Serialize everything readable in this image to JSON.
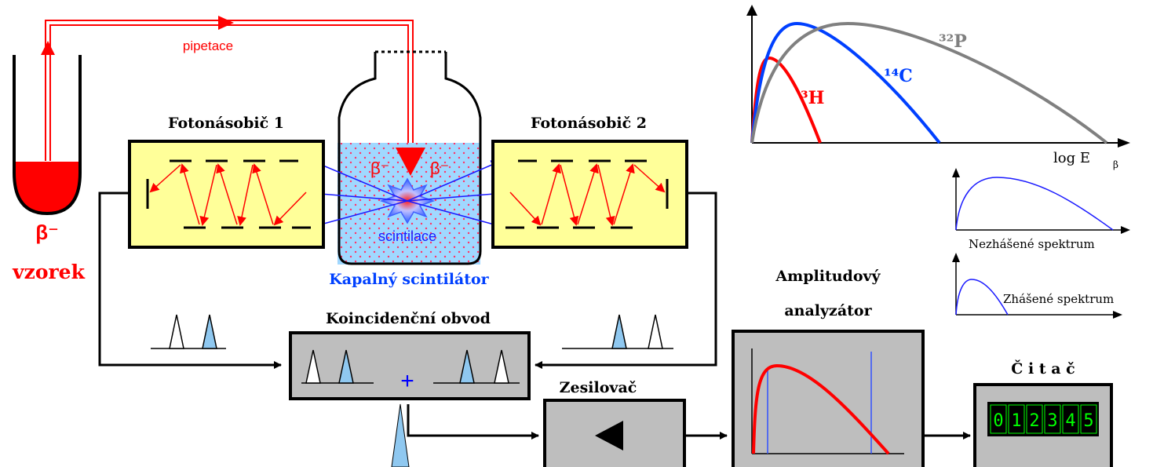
{
  "colors": {
    "red": "#ff0000",
    "blue": "#0000ff",
    "liquid": "#a0d8ff",
    "pmt_fill": "#ffff99",
    "box_fill": "#bebebe",
    "dark_blue": "#0040ff",
    "gray_curve": "#808080",
    "display_bg": "#000000",
    "display_digits": "#00ff00"
  },
  "sample": {
    "label": "vzorek",
    "symbol": "β⁻",
    "transfer_label": "pipetace"
  },
  "vial": {
    "symbol_left": "β⁻",
    "symbol_right": "β⁻",
    "flash_label": "scintilace",
    "caption": "Kapalný scintilátor"
  },
  "pmt1": {
    "title": "Fotonásobič 1"
  },
  "pmt2": {
    "title": "Fotonásobič 2"
  },
  "coincidence": {
    "title": "Koincidenční obvod",
    "plus": "+"
  },
  "amplifier": {
    "title": "Zesilovač"
  },
  "analyzer": {
    "title_line1": "Amplitudový",
    "title_line2": "analyzátor"
  },
  "counter": {
    "title": "Č i t a č",
    "digits": [
      "0",
      "1",
      "2",
      "3",
      "4",
      "5"
    ]
  },
  "spectrum_main": {
    "x_label": "log  E",
    "x_label_sub": "β",
    "curves": [
      {
        "isotope": "³H",
        "color": "#ff0000"
      },
      {
        "isotope": "¹⁴C",
        "color": "#0040ff"
      },
      {
        "isotope": "³²P",
        "color": "#808080"
      }
    ]
  },
  "spectrum_unquenched": {
    "label": "Nezhášené spektrum"
  },
  "spectrum_quenched": {
    "label": "Zhášené spektrum"
  }
}
